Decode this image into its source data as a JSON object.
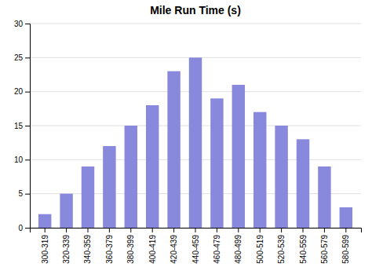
{
  "chart_data": {
    "type": "bar",
    "title": "Mile Run Time (s)",
    "categories": [
      "300-319",
      "320-339",
      "340-359",
      "360-379",
      "380-399",
      "400-419",
      "420-439",
      "440-459",
      "460-479",
      "480-499",
      "500-519",
      "520-539",
      "540-559",
      "560-579",
      "580-599"
    ],
    "values": [
      2,
      5,
      9,
      12,
      15,
      18,
      23,
      25,
      19,
      21,
      17,
      15,
      13,
      9,
      3
    ],
    "color": "#8888dd",
    "ylim": [
      0,
      30
    ],
    "yticks": [
      0,
      5,
      10,
      15,
      20,
      25,
      30
    ],
    "grid": true
  }
}
